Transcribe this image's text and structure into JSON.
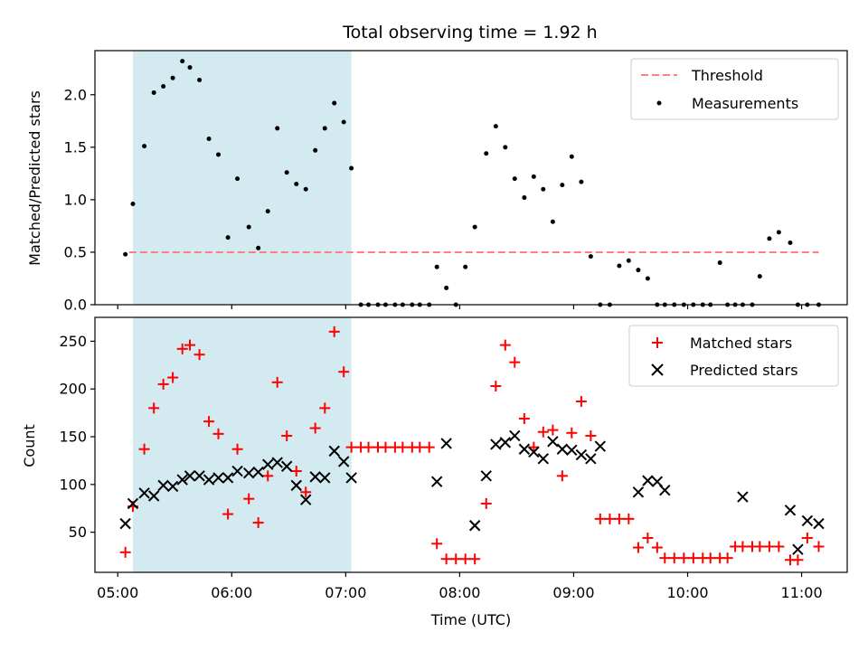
{
  "figure": {
    "title": "Total observing time = 1.92 h",
    "xlabel": "Time (UTC)"
  },
  "chart_data": [
    {
      "type": "scatter",
      "title": "Total observing time = 1.92 h",
      "ylabel": "Matched/Predicted stars",
      "xlabel": "",
      "x_unit": "hours UTC",
      "xlim": [
        4.8,
        11.4
      ],
      "ylim": [
        0,
        2.42
      ],
      "yticks": [
        0.0,
        0.5,
        1.0,
        1.5,
        2.0
      ],
      "ytick_labels": [
        "0.0",
        "0.5",
        "1.0",
        "1.5",
        "2.0"
      ],
      "shaded_span": [
        5.133,
        7.05
      ],
      "shaded_color": "#d4eaf1",
      "legend": {
        "location": "upper right",
        "entries": [
          "Threshold",
          "Measurements"
        ]
      },
      "series": [
        {
          "name": "Threshold",
          "style": "dashed-line",
          "color": "#ff7f7f",
          "x": [
            5.1,
            11.15
          ],
          "y": [
            0.5,
            0.5
          ]
        },
        {
          "name": "Measurements",
          "style": "dot",
          "color": "#000000",
          "x": [
            5.067,
            5.133,
            5.233,
            5.317,
            5.4,
            5.483,
            5.567,
            5.633,
            5.717,
            5.8,
            5.883,
            5.967,
            6.05,
            6.15,
            6.233,
            6.317,
            6.4,
            6.483,
            6.567,
            6.65,
            6.733,
            6.817,
            6.9,
            6.983,
            7.05,
            7.133,
            7.2,
            7.283,
            7.35,
            7.433,
            7.5,
            7.583,
            7.65,
            7.733,
            7.8,
            7.883,
            7.967,
            8.05,
            8.133,
            8.233,
            8.317,
            8.4,
            8.483,
            8.567,
            8.65,
            8.733,
            8.817,
            8.9,
            8.983,
            9.067,
            9.15,
            9.233,
            9.317,
            9.4,
            9.483,
            9.567,
            9.65,
            9.733,
            9.8,
            9.883,
            9.967,
            10.05,
            10.133,
            10.2,
            10.283,
            10.35,
            10.417,
            10.483,
            10.567,
            10.633,
            10.717,
            10.8,
            10.9,
            10.967,
            11.05,
            11.15
          ],
          "y": [
            0.48,
            0.96,
            1.51,
            2.02,
            2.08,
            2.16,
            2.32,
            2.26,
            2.14,
            1.58,
            1.43,
            0.64,
            1.2,
            0.74,
            0.54,
            0.89,
            1.68,
            1.26,
            1.15,
            1.1,
            1.47,
            1.68,
            1.92,
            1.74,
            1.3,
            0,
            0,
            0,
            0,
            0,
            0,
            0,
            0,
            0,
            0.36,
            0.16,
            0,
            0.36,
            0.74,
            1.44,
            1.7,
            1.5,
            1.2,
            1.02,
            1.22,
            1.1,
            0.79,
            1.14,
            1.41,
            1.17,
            0.46,
            0,
            0,
            0.37,
            0.42,
            0.33,
            0.25,
            0,
            0,
            0,
            0,
            0,
            0,
            0,
            0.4,
            0,
            0,
            0,
            0,
            0.27,
            0.63,
            0.69,
            0.59,
            0,
            0,
            0
          ]
        }
      ]
    },
    {
      "type": "scatter",
      "title": "",
      "ylabel": "Count",
      "xlabel": "Time (UTC)",
      "x_unit": "hours UTC",
      "xlim": [
        4.8,
        11.4
      ],
      "ylim": [
        8,
        275
      ],
      "yticks": [
        50,
        100,
        150,
        200,
        250
      ],
      "ytick_labels": [
        "50",
        "100",
        "150",
        "200",
        "250"
      ],
      "xticks": [
        5,
        6,
        7,
        8,
        9,
        10,
        11
      ],
      "xtick_labels": [
        "05:00",
        "06:00",
        "07:00",
        "08:00",
        "09:00",
        "10:00",
        "11:00"
      ],
      "shaded_span": [
        5.133,
        7.05
      ],
      "shaded_color": "#d4eaf1",
      "legend": {
        "location": "upper right",
        "entries": [
          "Matched stars",
          "Predicted stars"
        ]
      },
      "series": [
        {
          "name": "Matched stars",
          "marker": "plus",
          "color": "#ff0000",
          "x": [
            5.067,
            5.133,
            5.233,
            5.317,
            5.4,
            5.483,
            5.567,
            5.633,
            5.717,
            5.8,
            5.883,
            5.967,
            6.05,
            6.15,
            6.233,
            6.317,
            6.4,
            6.483,
            6.567,
            6.65,
            6.733,
            6.817,
            6.9,
            6.983,
            7.05,
            7.133,
            7.2,
            7.283,
            7.35,
            7.433,
            7.5,
            7.583,
            7.65,
            7.733,
            7.8,
            7.883,
            7.967,
            8.05,
            8.133,
            8.233,
            8.317,
            8.4,
            8.483,
            8.567,
            8.65,
            8.733,
            8.817,
            8.9,
            8.983,
            9.067,
            9.15,
            9.233,
            9.317,
            9.4,
            9.483,
            9.567,
            9.65,
            9.733,
            9.8,
            9.883,
            9.967,
            10.05,
            10.133,
            10.2,
            10.283,
            10.35,
            10.417,
            10.483,
            10.567,
            10.633,
            10.717,
            10.8,
            10.9,
            10.967,
            11.05,
            11.15
          ],
          "y": [
            29,
            77,
            137,
            180,
            205,
            212,
            242,
            246,
            236,
            166,
            153,
            69,
            137,
            85,
            60,
            109,
            207,
            151,
            114,
            92,
            159,
            180,
            260,
            218,
            139,
            139,
            139,
            139,
            139,
            139,
            139,
            139,
            139,
            139,
            38,
            22,
            22,
            22,
            22,
            80,
            203,
            246,
            228,
            169,
            139,
            155,
            157,
            109,
            154,
            187,
            151,
            64,
            64,
            64,
            64,
            34,
            44,
            34,
            23,
            23,
            23,
            23,
            23,
            23,
            23,
            23,
            35,
            35,
            35,
            35,
            35,
            35,
            21,
            21,
            44,
            35
          ]
        },
        {
          "name": "Predicted stars",
          "marker": "x",
          "color": "#000000",
          "x": [
            5.067,
            5.133,
            5.233,
            5.317,
            5.4,
            5.483,
            5.567,
            5.633,
            5.717,
            5.8,
            5.883,
            5.967,
            6.05,
            6.15,
            6.233,
            6.317,
            6.4,
            6.483,
            6.567,
            6.65,
            6.733,
            6.817,
            6.9,
            6.983,
            7.05,
            7.8,
            7.883,
            8.133,
            8.233,
            8.317,
            8.4,
            8.483,
            8.567,
            8.65,
            8.733,
            8.817,
            8.9,
            8.983,
            9.067,
            9.15,
            9.233,
            9.567,
            9.65,
            9.733,
            9.8,
            10.483,
            10.9,
            10.967,
            11.05,
            11.15
          ],
          "y": [
            59,
            80,
            91,
            88,
            99,
            98,
            105,
            109,
            109,
            105,
            107,
            107,
            114,
            112,
            113,
            121,
            123,
            119,
            99,
            84,
            108,
            107,
            135,
            124,
            107,
            103,
            143,
            57,
            109,
            142,
            144,
            151,
            137,
            134,
            127,
            145,
            137,
            136,
            131,
            127,
            140,
            92,
            104,
            103,
            94,
            87,
            73,
            32,
            62,
            59
          ]
        }
      ]
    }
  ]
}
